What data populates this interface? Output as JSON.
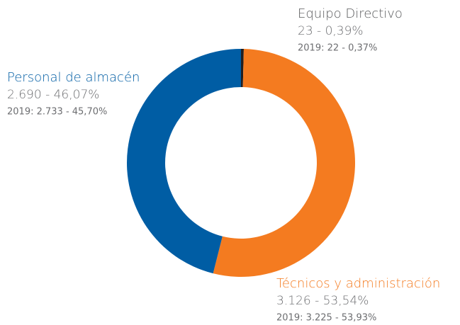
{
  "chart_data": {
    "type": "donut",
    "categories": [
      "Equipo Directivo",
      "Técnicos y administración",
      "Personal de almacén"
    ],
    "values": [
      23,
      3126,
      2690
    ],
    "value_labels": [
      "23 - 0,39%",
      "3.126 - 53,54%",
      "2.690 - 46,07%"
    ],
    "previous_labels": [
      "2019: 22 - 0,37%",
      "2019: 3.225 - 53,93%",
      "2019: 2.733 - 45,70%"
    ],
    "colors": [
      "#231f20",
      "#f47b20",
      "#005da4"
    ],
    "label_colors": [
      "#58595b",
      "#f47b20",
      "#005da4"
    ]
  }
}
